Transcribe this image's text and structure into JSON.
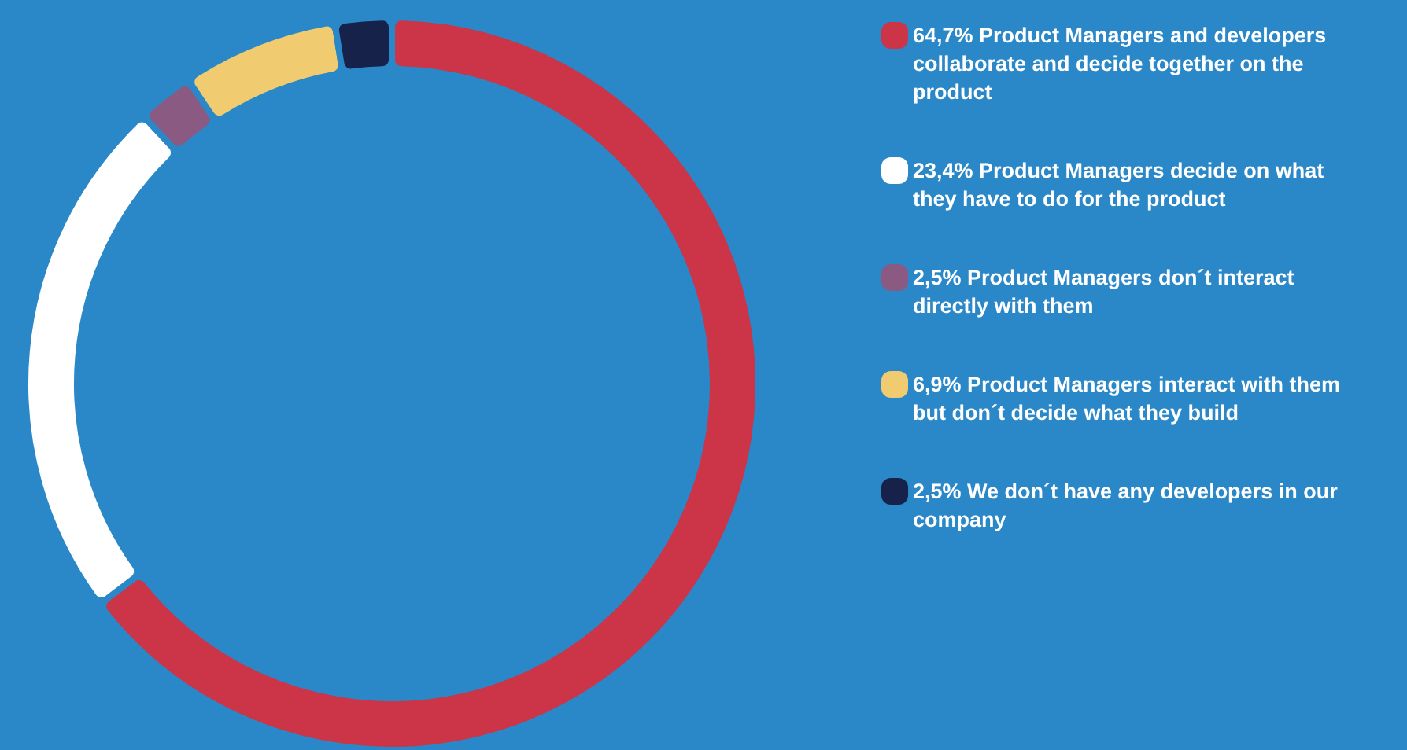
{
  "chart_data": {
    "type": "donut",
    "categories": [
      "Product Managers and developers collaborate and decide together on the product",
      "Product Managers decide on what they have to do for the product",
      "Product Managers don´t interact directly with them",
      "Product Managers interact with them but don´t decide what they build",
      "We don´t have any developers in our company"
    ],
    "values": [
      64.7,
      23.4,
      2.5,
      6.9,
      2.5
    ],
    "value_labels": [
      "64,7%",
      "23,4%",
      "2,5%",
      "6,9%",
      "2,5%"
    ],
    "colors": [
      "#cc3448",
      "#ffffff",
      "#8a5a82",
      "#f0cb70",
      "#17224a"
    ],
    "legend": "right"
  }
}
